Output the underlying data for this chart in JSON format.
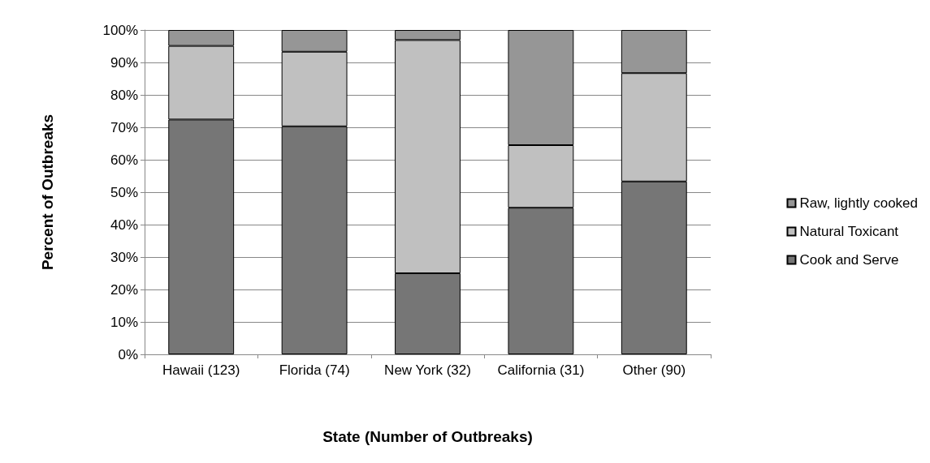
{
  "chart_data": {
    "type": "bar",
    "stacked": true,
    "xlabel": "State (Number of Outbreaks)",
    "ylabel": "Percent of Outbreaks",
    "categories": [
      "Hawaii (123)",
      "Florida (74)",
      "New York (32)",
      "California (31)",
      "Other (90)"
    ],
    "series": [
      {
        "name": "Cook and Serve",
        "color": "#767676",
        "values": [
          72.4,
          70.3,
          25,
          45.2,
          53.3
        ]
      },
      {
        "name": "Natural Toxicant",
        "color": "#c0c0c0",
        "values": [
          22.7,
          23.0,
          71.9,
          19.3,
          33.4
        ]
      },
      {
        "name": "Raw, lightly cooked",
        "color": "#969696",
        "values": [
          4.9,
          6.7,
          3.1,
          35.5,
          13.3
        ]
      }
    ],
    "ylim": [
      0,
      100
    ],
    "yticks": [
      {
        "value": 0,
        "label": "0%"
      },
      {
        "value": 10,
        "label": "10%"
      },
      {
        "value": 20,
        "label": "20%"
      },
      {
        "value": 30,
        "label": "30%"
      },
      {
        "value": 40,
        "label": "40%"
      },
      {
        "value": 50,
        "label": "50%"
      },
      {
        "value": 60,
        "label": "60%"
      },
      {
        "value": 70,
        "label": "70%"
      },
      {
        "value": 80,
        "label": "80%"
      },
      {
        "value": 90,
        "label": "90%"
      },
      {
        "value": 100,
        "label": "100%"
      }
    ],
    "grid": "y",
    "legend": "right"
  }
}
